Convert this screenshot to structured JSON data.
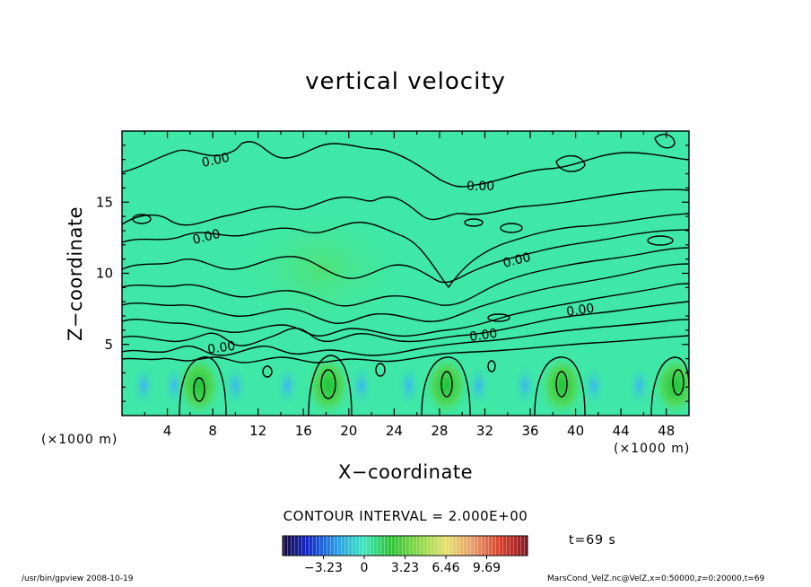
{
  "chart_data": {
    "type": "contour",
    "title": "vertical velocity",
    "xlabel": "X−coordinate",
    "ylabel": "Z−coordinate",
    "x_unit_left": "(×1000 m)",
    "x_unit_right": "(×1000 m)",
    "xlim": [
      0,
      50
    ],
    "ylim": [
      0,
      20
    ],
    "x_ticks": [
      4,
      8,
      12,
      16,
      20,
      24,
      28,
      32,
      36,
      40,
      44,
      48
    ],
    "y_ticks": [
      5,
      10,
      15
    ],
    "contour_labels": [
      "0.00",
      "0.00",
      "0.00",
      "0.00",
      "0.00",
      "0.00",
      "0.00"
    ],
    "updraft_centers_x": [
      6.8,
      18.2,
      28.6,
      38.8,
      48.8
    ],
    "updraft_center_z": 2.1,
    "contour_interval_text": "CONTOUR INTERVAL = 2.000E+00",
    "colorbar": {
      "min": -6.46,
      "max": 12.92,
      "tick_labels": [
        "−3.23",
        "0",
        "3.23",
        "6.46",
        "9.69"
      ],
      "tick_values": [
        -3.23,
        0,
        3.23,
        6.46,
        9.69
      ]
    },
    "time_label": "t=69 s",
    "footer_left": "/usr/bin/gpview  2008-10-19",
    "footer_right": "MarsCond_VelZ.nc@VelZ,x=0:50000,z=0:20000,t=69"
  }
}
